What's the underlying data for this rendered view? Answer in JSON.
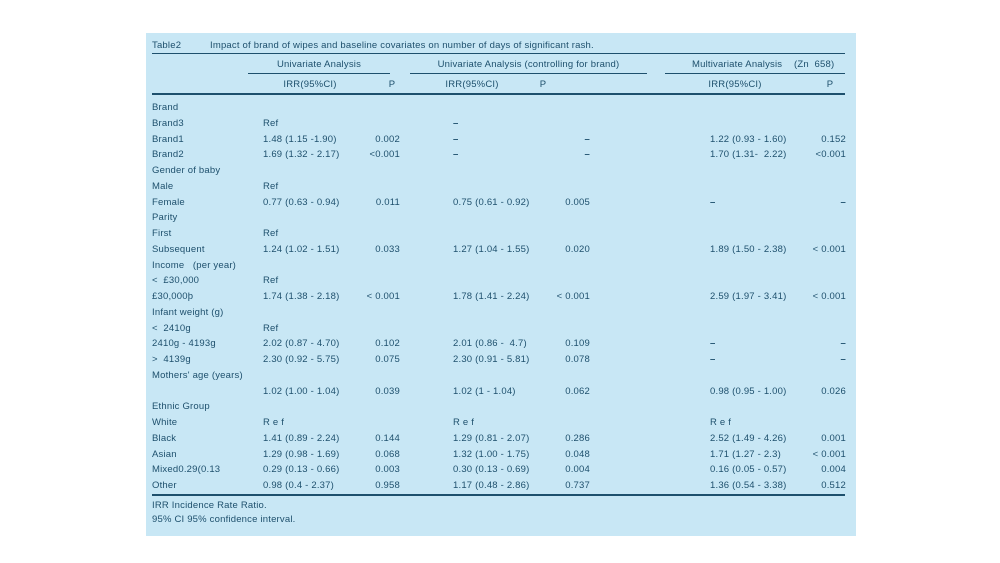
{
  "colors": {
    "page_bg": "#ffffff",
    "panel_bg": "#c8e7f5",
    "text": "#1e506d"
  },
  "table": {
    "label": "Table2",
    "caption": "Impact of brand of wipes and baseline covariates on number of days of significant rash.",
    "groups": [
      {
        "label": "Univariate Analysis"
      },
      {
        "label": "Univariate Analysis (controlling for brand)"
      },
      {
        "label": "Multivariate Analysis",
        "suffix": "(Zn  658)"
      }
    ],
    "subheaders": [
      "IRR(95%CI)",
      "P",
      "IRR(95%CI)",
      "P",
      "IRR(95%CI)",
      "P"
    ],
    "rows": [
      {
        "label": "Brand",
        "cells": [
          "",
          "",
          "",
          "",
          "",
          ""
        ]
      },
      {
        "label": "Brand3",
        "cells": [
          "Ref",
          "",
          "–",
          "",
          "",
          ""
        ]
      },
      {
        "label": "Brand1",
        "cells": [
          "1.48 (1.15 -1.90)",
          "0.002",
          "–",
          "–",
          "1.22 (0.93 - 1.60)",
          "0.152"
        ]
      },
      {
        "label": "Brand2",
        "cells": [
          "1.69 (1.32 - 2.17)",
          "<0.001",
          "–",
          "–",
          "1.70 (1.31-  2.22)",
          "<0.001"
        ]
      },
      {
        "label": "Gender of baby",
        "cells": [
          "",
          "",
          "",
          "",
          "",
          ""
        ]
      },
      {
        "label": "Male",
        "cells": [
          "Ref",
          "",
          "",
          "",
          "",
          ""
        ]
      },
      {
        "label": "Female",
        "cells": [
          "0.77 (0.63 - 0.94)",
          "0.011",
          "0.75 (0.61 - 0.92)",
          "0.005",
          "–",
          "–"
        ]
      },
      {
        "label": "Parity",
        "cells": [
          "",
          "",
          "",
          "",
          "",
          ""
        ]
      },
      {
        "label": "First",
        "cells": [
          "Ref",
          "",
          "",
          "",
          "",
          ""
        ]
      },
      {
        "label": "Subsequent",
        "cells": [
          "1.24 (1.02 - 1.51)",
          "0.033",
          "1.27 (1.04 - 1.55)",
          "0.020",
          "1.89 (1.50 - 2.38)",
          "< 0.001"
        ]
      },
      {
        "label": "Income   (per year)",
        "cells": [
          "",
          "",
          "",
          "",
          "",
          ""
        ]
      },
      {
        "label": "<  £30,000",
        "cells": [
          "Ref",
          "",
          "",
          "",
          "",
          ""
        ]
      },
      {
        "label": "£30,000þ",
        "cells": [
          "1.74 (1.38 - 2.18)",
          "< 0.001",
          "1.78 (1.41 - 2.24)",
          "< 0.001",
          "2.59 (1.97 - 3.41)",
          "< 0.001"
        ]
      },
      {
        "label": "Infant weight (g)",
        "cells": [
          "",
          "",
          "",
          "",
          "",
          ""
        ]
      },
      {
        "label": "<  2410g",
        "cells": [
          "Ref",
          "",
          "",
          "",
          "",
          ""
        ]
      },
      {
        "label": "2410g - 4193g",
        "cells": [
          "2.02 (0.87 - 4.70)",
          "0.102",
          "2.01 (0.86 -  4.7)",
          "0.109",
          "–",
          "–"
        ]
      },
      {
        "label": ">  4139g",
        "cells": [
          "2.30 (0.92 - 5.75)",
          "0.075",
          "2.30 (0.91 - 5.81)",
          "0.078",
          "–",
          "–"
        ]
      },
      {
        "label": "Mothers' age (years)",
        "cells": [
          "",
          "",
          "",
          "",
          "",
          ""
        ]
      },
      {
        "label": "",
        "cells": [
          "1.02 (1.00 - 1.04)",
          "0.039",
          "1.02 (1 - 1.04)",
          "0.062",
          "0.98 (0.95 - 1.00)",
          "0.026"
        ]
      },
      {
        "label": "Ethnic Group",
        "cells": [
          "",
          "",
          "",
          "",
          "",
          ""
        ]
      },
      {
        "label": "White",
        "cells": [
          "R e f",
          "",
          "R e f",
          "",
          "R e f",
          ""
        ]
      },
      {
        "label": "Black",
        "cells": [
          "1.41 (0.89 - 2.24)",
          "0.144",
          "1.29 (0.81 - 2.07)",
          "0.286",
          "2.52 (1.49 - 4.26)",
          "0.001"
        ]
      },
      {
        "label": "Asian",
        "cells": [
          "1.29 (0.98 - 1.69)",
          "0.068",
          "1.32 (1.00 - 1.75)",
          "0.048",
          "1.71 (1.27 - 2.3)",
          "< 0.001"
        ]
      },
      {
        "label": "Mixed0.29(0.13",
        "cells": [
          "0.29 (0.13 - 0.66)",
          "0.003",
          "0.30 (0.13 - 0.69)",
          "0.004",
          "0.16 (0.05 - 0.57)",
          "0.004"
        ]
      },
      {
        "label": "Other",
        "cells": [
          "0.98 (0.4 - 2.37)",
          "0.958",
          "1.17 (0.48 - 2.86)",
          "0.737",
          "1.36 (0.54 - 3.38)",
          "0.512"
        ]
      }
    ],
    "footnotes": [
      "IRR Incidence Rate Ratio.",
      "95% CI 95% confidence interval."
    ]
  }
}
